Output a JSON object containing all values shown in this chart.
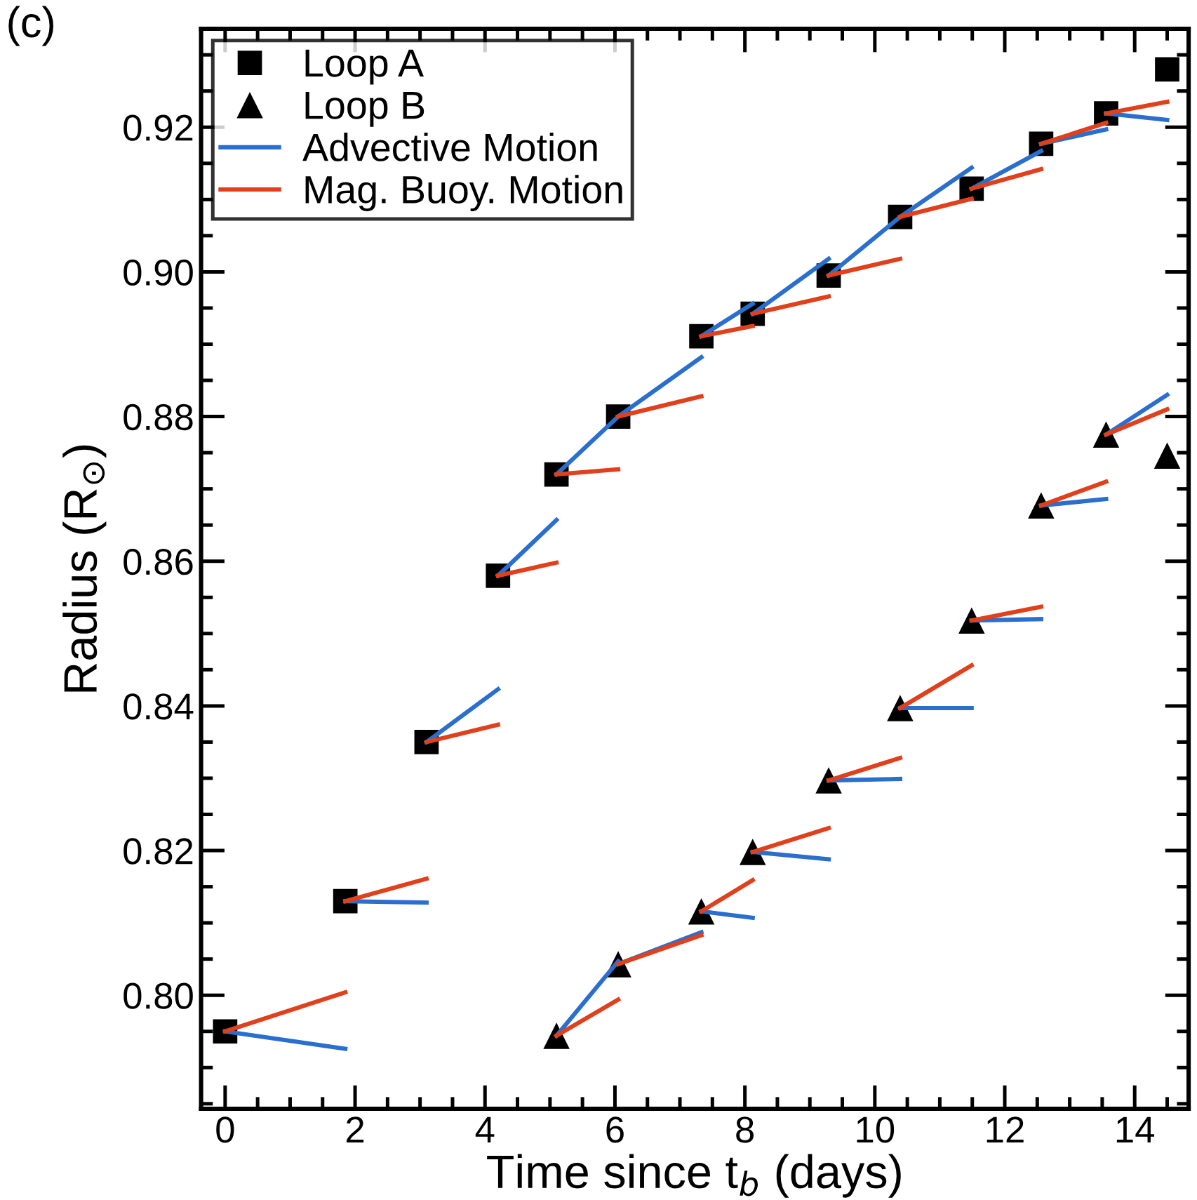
{
  "chart_data": {
    "type": "scatter",
    "xlabel": "Time since t$_{b}$ (days)",
    "ylabel": "Radius (R$_{⊙}$)",
    "annotations": [
      "(c)"
    ],
    "xlim": [
      -0.37,
      14.83
    ],
    "xticks": [
      0,
      2,
      4,
      6,
      8,
      10,
      12,
      14
    ],
    "ylim": [
      0.7843,
      0.9336
    ],
    "yticks": [
      {
        "value": 0.8,
        "label": "0.80"
      },
      {
        "value": 0.82,
        "label": "0.82"
      },
      {
        "value": 0.84,
        "label": "0.84"
      },
      {
        "value": 0.86,
        "label": "0.86"
      },
      {
        "value": 0.88,
        "label": "0.88"
      },
      {
        "value": 0.9,
        "label": "0.90"
      },
      {
        "value": 0.92,
        "label": "0.92"
      }
    ],
    "grid": false,
    "legend": "top left",
    "series": [
      {
        "name": "Loop A",
        "marker": "square",
        "color": "#000000",
        "x": [
          0,
          1.85,
          3.1,
          4.2,
          5.1,
          6.05,
          7.33,
          8.12,
          9.29,
          10.39,
          11.49,
          12.56,
          13.56,
          14.5
        ],
        "values": [
          0.795,
          0.813,
          0.835,
          0.858,
          0.872,
          0.88,
          0.8911,
          0.8942,
          0.8995,
          0.9076,
          0.9115,
          0.9177,
          0.9219,
          0.928
        ]
      },
      {
        "name": "Loop B",
        "marker": "triangle",
        "color": "#000000",
        "x": [
          5.1,
          6.05,
          7.33,
          8.12,
          9.29,
          10.39,
          11.49,
          12.56,
          13.56,
          14.5
        ],
        "values": [
          0.7944,
          0.8043,
          0.8116,
          0.8198,
          0.8297,
          0.8397,
          0.8518,
          0.8677,
          0.8775,
          0.8746
        ]
      },
      {
        "name": "Advective Motion",
        "type": "line",
        "color": "#2a6fce",
        "x": [
          0,
          1.85
        ],
        "values": [
          0.795,
          0.7926
        ]
      },
      {
        "type": "line",
        "color": "#2a6fce",
        "x": [
          1.85,
          3.1
        ],
        "values": [
          0.813,
          0.8128
        ]
      },
      {
        "type": "line",
        "color": "#2a6fce",
        "x": [
          3.1,
          4.2
        ],
        "values": [
          0.835,
          0.8423
        ]
      },
      {
        "type": "line",
        "color": "#2a6fce",
        "x": [
          4.2,
          5.1
        ],
        "values": [
          0.858,
          0.8657
        ]
      },
      {
        "type": "line",
        "color": "#2a6fce",
        "x": [
          5.1,
          6.05
        ],
        "values": [
          0.872,
          0.88
        ]
      },
      {
        "type": "line",
        "color": "#2a6fce",
        "x": [
          6.05,
          7.33
        ],
        "values": [
          0.88,
          0.8882
        ]
      },
      {
        "type": "line",
        "color": "#2a6fce",
        "x": [
          7.33,
          8.12
        ],
        "values": [
          0.8911,
          0.8956
        ]
      },
      {
        "type": "line",
        "color": "#2a6fce",
        "x": [
          8.12,
          9.29
        ],
        "values": [
          0.8942,
          0.9018
        ]
      },
      {
        "type": "line",
        "color": "#2a6fce",
        "x": [
          9.29,
          10.39
        ],
        "values": [
          0.8995,
          0.9076
        ]
      },
      {
        "type": "line",
        "color": "#2a6fce",
        "x": [
          10.39,
          11.49
        ],
        "values": [
          0.9076,
          0.9144
        ]
      },
      {
        "type": "line",
        "color": "#2a6fce",
        "x": [
          11.49,
          12.56
        ],
        "values": [
          0.9115,
          0.9167
        ]
      },
      {
        "type": "line",
        "color": "#2a6fce",
        "x": [
          12.56,
          13.56
        ],
        "values": [
          0.9177,
          0.9197
        ]
      },
      {
        "type": "line",
        "color": "#2a6fce",
        "x": [
          13.56,
          14.5
        ],
        "values": [
          0.9219,
          0.921
        ]
      },
      {
        "type": "line",
        "color": "#2a6fce",
        "x": [
          5.1,
          6.05
        ],
        "values": [
          0.7944,
          0.8047
        ]
      },
      {
        "type": "line",
        "color": "#2a6fce",
        "x": [
          6.05,
          7.33
        ],
        "values": [
          0.8043,
          0.8087
        ]
      },
      {
        "type": "line",
        "color": "#2a6fce",
        "x": [
          7.33,
          8.12
        ],
        "values": [
          0.8116,
          0.8107
        ]
      },
      {
        "type": "line",
        "color": "#2a6fce",
        "x": [
          8.12,
          9.29
        ],
        "values": [
          0.8198,
          0.8188
        ]
      },
      {
        "type": "line",
        "color": "#2a6fce",
        "x": [
          9.29,
          10.39
        ],
        "values": [
          0.8297,
          0.8299
        ]
      },
      {
        "type": "line",
        "color": "#2a6fce",
        "x": [
          10.39,
          11.49
        ],
        "values": [
          0.8397,
          0.8397
        ]
      },
      {
        "type": "line",
        "color": "#2a6fce",
        "x": [
          11.49,
          12.56
        ],
        "values": [
          0.8518,
          0.852
        ]
      },
      {
        "type": "line",
        "color": "#2a6fce",
        "x": [
          12.56,
          13.56
        ],
        "values": [
          0.8677,
          0.8686
        ]
      },
      {
        "type": "line",
        "color": "#2a6fce",
        "x": [
          13.56,
          14.5
        ],
        "values": [
          0.8775,
          0.883
        ]
      },
      {
        "name": "Mag. Buoy. Motion",
        "type": "line",
        "color": "#e0401c",
        "x": [
          0,
          1.85
        ],
        "values": [
          0.795,
          0.8004
        ]
      },
      {
        "type": "line",
        "color": "#e0401c",
        "x": [
          1.85,
          3.1
        ],
        "values": [
          0.813,
          0.8161
        ]
      },
      {
        "type": "line",
        "color": "#e0401c",
        "x": [
          3.1,
          4.2
        ],
        "values": [
          0.835,
          0.8374
        ]
      },
      {
        "type": "line",
        "color": "#e0401c",
        "x": [
          4.2,
          5.1
        ],
        "values": [
          0.858,
          0.8598
        ]
      },
      {
        "type": "line",
        "color": "#e0401c",
        "x": [
          5.1,
          6.05
        ],
        "values": [
          0.872,
          0.8727
        ]
      },
      {
        "type": "line",
        "color": "#e0401c",
        "x": [
          6.05,
          7.33
        ],
        "values": [
          0.88,
          0.8828
        ]
      },
      {
        "type": "line",
        "color": "#e0401c",
        "x": [
          7.33,
          8.12
        ],
        "values": [
          0.8911,
          0.8925
        ]
      },
      {
        "type": "line",
        "color": "#e0401c",
        "x": [
          8.12,
          9.29
        ],
        "values": [
          0.8942,
          0.8966
        ]
      },
      {
        "type": "line",
        "color": "#e0401c",
        "x": [
          9.29,
          10.39
        ],
        "values": [
          0.8995,
          0.9018
        ]
      },
      {
        "type": "line",
        "color": "#e0401c",
        "x": [
          10.39,
          11.49
        ],
        "values": [
          0.9076,
          0.9101
        ]
      },
      {
        "type": "line",
        "color": "#e0401c",
        "x": [
          11.49,
          12.56
        ],
        "values": [
          0.9115,
          0.9142
        ]
      },
      {
        "type": "line",
        "color": "#e0401c",
        "x": [
          12.56,
          13.56
        ],
        "values": [
          0.9177,
          0.9206
        ]
      },
      {
        "type": "line",
        "color": "#e0401c",
        "x": [
          13.56,
          14.5
        ],
        "values": [
          0.9219,
          0.9235
        ]
      },
      {
        "type": "line",
        "color": "#e0401c",
        "x": [
          5.1,
          6.05
        ],
        "values": [
          0.7944,
          0.7994
        ]
      },
      {
        "type": "line",
        "color": "#e0401c",
        "x": [
          6.05,
          7.33
        ],
        "values": [
          0.8043,
          0.8083
        ]
      },
      {
        "type": "line",
        "color": "#e0401c",
        "x": [
          7.33,
          8.12
        ],
        "values": [
          0.8116,
          0.8159
        ]
      },
      {
        "type": "line",
        "color": "#e0401c",
        "x": [
          8.12,
          9.29
        ],
        "values": [
          0.8198,
          0.8231
        ]
      },
      {
        "type": "line",
        "color": "#e0401c",
        "x": [
          9.29,
          10.39
        ],
        "values": [
          0.8297,
          0.8328
        ]
      },
      {
        "type": "line",
        "color": "#e0401c",
        "x": [
          10.39,
          11.49
        ],
        "values": [
          0.8397,
          0.8456
        ]
      },
      {
        "type": "line",
        "color": "#e0401c",
        "x": [
          11.49,
          12.56
        ],
        "values": [
          0.8518,
          0.8537
        ]
      },
      {
        "type": "line",
        "color": "#e0401c",
        "x": [
          12.56,
          13.56
        ],
        "values": [
          0.8677,
          0.871
        ]
      },
      {
        "type": "line",
        "color": "#e0401c",
        "x": [
          13.56,
          14.5
        ],
        "values": [
          0.8775,
          0.881
        ]
      }
    ]
  }
}
